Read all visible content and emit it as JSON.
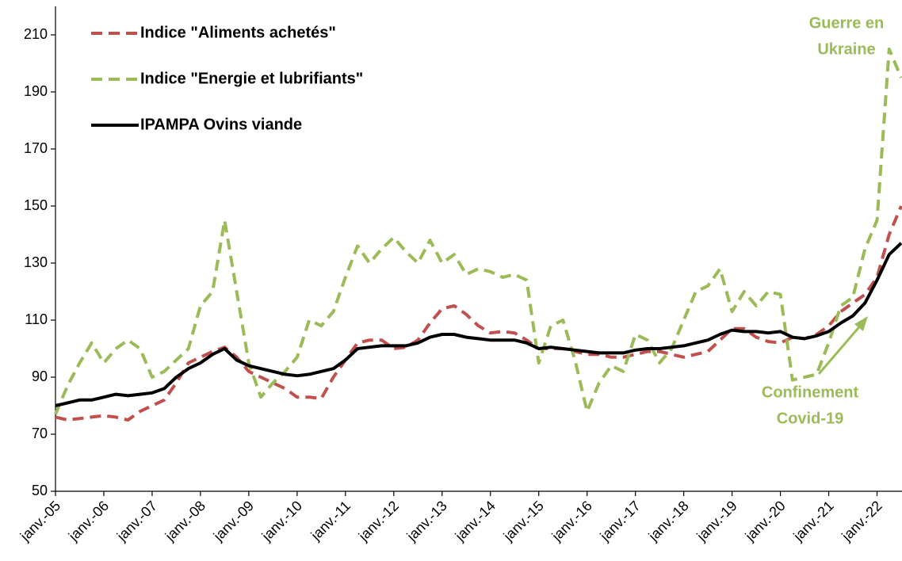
{
  "chart_data": {
    "type": "line",
    "categories": [
      "janv.-05",
      null,
      null,
      null,
      "janv.-06",
      null,
      null,
      null,
      "janv.-07",
      null,
      null,
      null,
      "janv.-08",
      null,
      null,
      null,
      "janv.-09",
      null,
      null,
      null,
      "janv.-10",
      null,
      null,
      null,
      "janv.-11",
      null,
      null,
      null,
      "janv.-12",
      null,
      null,
      null,
      "janv.-13",
      null,
      null,
      null,
      "janv.-14",
      null,
      null,
      null,
      "janv.-15",
      null,
      null,
      null,
      "janv.-16",
      null,
      null,
      null,
      "janv.-17",
      null,
      null,
      null,
      "janv.-18",
      null,
      null,
      null,
      "janv.-19",
      null,
      null,
      null,
      "janv.-20",
      null,
      null,
      null,
      "janv.-21",
      null,
      null,
      null,
      "janv.-22",
      null,
      null
    ],
    "series": [
      {
        "name": "Indice \"Aliments achetés\"",
        "color": "#c0504d",
        "dashed": true,
        "values": [
          76,
          75,
          75.5,
          76,
          76.5,
          76,
          75,
          78,
          80,
          82,
          88,
          95,
          97,
          99,
          100.5,
          97,
          92,
          90,
          88,
          86,
          83,
          83,
          82.5,
          90,
          96,
          102,
          103,
          103,
          100,
          100.5,
          103,
          109,
          114,
          115,
          112,
          108,
          105.5,
          106,
          105.5,
          103,
          100,
          100,
          100,
          99,
          98,
          98,
          97,
          97,
          98,
          99,
          99,
          98,
          97,
          98,
          99,
          103,
          107,
          107,
          104,
          102.5,
          102,
          104,
          103.5,
          105,
          108,
          113,
          116,
          119,
          125,
          140,
          150
        ]
      },
      {
        "name": "Indice \"Energie et lubrifiants\"",
        "color": "#9bbb59",
        "dashed": true,
        "values": [
          77,
          87,
          95,
          102,
          95,
          100,
          103,
          100,
          90,
          92,
          96,
          100,
          115,
          120,
          145,
          120,
          95,
          83,
          88,
          92,
          97,
          110,
          108,
          113,
          125,
          136,
          130,
          135,
          139,
          134,
          130,
          138,
          130,
          133,
          126,
          128,
          127,
          125,
          126,
          124,
          95,
          108,
          110,
          96,
          78,
          88,
          94,
          92,
          105,
          103,
          95,
          100,
          110,
          120,
          122,
          128,
          113,
          120,
          115,
          120,
          119,
          89,
          90,
          91,
          102,
          115,
          118,
          135,
          145,
          205,
          195
        ]
      },
      {
        "name": "IPAMPA Ovins viande",
        "color": "#000000",
        "dashed": false,
        "values": [
          80,
          81,
          82,
          82,
          83,
          84,
          83.5,
          84,
          84.5,
          86,
          90,
          93,
          95,
          98,
          100,
          96,
          94,
          93,
          92,
          91,
          90.5,
          91,
          92,
          93,
          96,
          100,
          100.5,
          101,
          101,
          101,
          102,
          104,
          105,
          105,
          104,
          103.5,
          103,
          103,
          103,
          102,
          100,
          100.5,
          100,
          99.5,
          99,
          98.5,
          98.5,
          98.5,
          99.5,
          100,
          100,
          100.5,
          101,
          102,
          103,
          105,
          106.5,
          106,
          106,
          105.5,
          106,
          104,
          103.5,
          104.5,
          106,
          109,
          111.5,
          116,
          124,
          133,
          137
        ]
      }
    ],
    "ylim": [
      50,
      220
    ],
    "yticks": [
      50,
      70,
      90,
      110,
      130,
      150,
      170,
      190,
      210
    ],
    "grid": false,
    "legend": "top-left",
    "annotations": [
      {
        "lines": [
          "Guerre en",
          "Ukraine"
        ],
        "color": "#9bbb59"
      },
      {
        "lines": [
          "Confinement",
          "Covid-19"
        ],
        "color": "#9bbb59"
      }
    ]
  }
}
